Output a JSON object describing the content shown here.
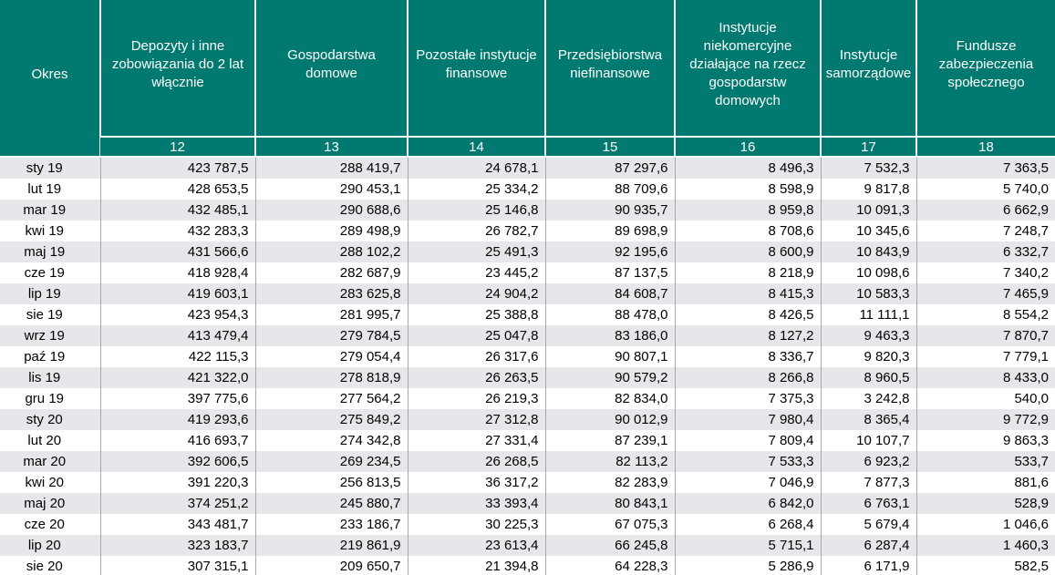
{
  "colors": {
    "header_bg": "#007A70",
    "header_text": "#FFFFFF",
    "row_stripe": "#E5E7EA",
    "row_white": "#FFFFFF",
    "grid_line": "#A6A9AC",
    "cell_text": "#000000",
    "header_separator": "#FFFFFF"
  },
  "chart_data": {
    "type": "table",
    "title": "",
    "columns": [
      "Okres",
      "Depozyty i inne\nzobowiązania do 2 lat\nwłącznie",
      "Gospodarstwa\ndomowe",
      "Pozostałe instytucje\nfinansowe",
      "Przedsiębiorstwa\nniefinansowe",
      "Instytucje\nniekomercyjne\ndziałające na rzecz\ngospodarstw\ndomowych",
      "Instytucje\nsamorządowe",
      "Fundusze\nzabezpieczenia\nspołecznego"
    ],
    "column_numbers": [
      "12",
      "13",
      "14",
      "15",
      "16",
      "17",
      "18"
    ],
    "rows": [
      [
        "sty 19",
        "423 787,5",
        "288 419,7",
        "24 678,1",
        "87 297,6",
        "8 496,3",
        "7 532,3",
        "7 363,5"
      ],
      [
        "lut 19",
        "428 653,5",
        "290 453,1",
        "25 334,2",
        "88 709,6",
        "8 598,9",
        "9 817,8",
        "5 740,0"
      ],
      [
        "mar 19",
        "432 485,1",
        "290 688,6",
        "25 146,8",
        "90 935,7",
        "8 959,8",
        "10 091,3",
        "6 662,9"
      ],
      [
        "kwi 19",
        "432 283,3",
        "289 498,9",
        "26 782,7",
        "89 698,9",
        "8 708,6",
        "10 345,6",
        "7 248,7"
      ],
      [
        "maj 19",
        "431 566,6",
        "288 102,2",
        "25 491,3",
        "92 195,6",
        "8 600,9",
        "10 843,9",
        "6 332,7"
      ],
      [
        "cze 19",
        "418 928,4",
        "282 687,9",
        "23 445,2",
        "87 137,5",
        "8 218,9",
        "10 098,6",
        "7 340,2"
      ],
      [
        "lip 19",
        "419 603,1",
        "283 625,8",
        "24 904,2",
        "84 608,7",
        "8 415,3",
        "10 583,3",
        "7 465,9"
      ],
      [
        "sie 19",
        "423 954,3",
        "281 995,7",
        "25 388,8",
        "88 478,0",
        "8 426,5",
        "11 111,1",
        "8 554,2"
      ],
      [
        "wrz 19",
        "413 479,4",
        "279 784,5",
        "25 047,8",
        "83 186,0",
        "8 127,2",
        "9 463,3",
        "7 870,7"
      ],
      [
        "paź 19",
        "422 115,3",
        "279 054,4",
        "26 317,6",
        "90 807,1",
        "8 336,7",
        "9 820,3",
        "7 779,1"
      ],
      [
        "lis 19",
        "421 322,0",
        "278 818,9",
        "26 263,5",
        "90 579,2",
        "8 266,8",
        "8 960,5",
        "8 433,0"
      ],
      [
        "gru 19",
        "397 775,6",
        "277 564,2",
        "26 219,3",
        "82 834,0",
        "7 375,3",
        "3 242,8",
        "540,0"
      ],
      [
        "sty 20",
        "419 293,6",
        "275 849,2",
        "27 312,8",
        "90 012,9",
        "7 980,4",
        "8 365,4",
        "9 772,9"
      ],
      [
        "lut 20",
        "416 693,7",
        "274 342,8",
        "27 331,4",
        "87 239,1",
        "7 809,4",
        "10 107,7",
        "9 863,3"
      ],
      [
        "mar 20",
        "392 606,5",
        "269 234,5",
        "26 268,5",
        "82 113,2",
        "7 533,3",
        "6 923,2",
        "533,7"
      ],
      [
        "kwi 20",
        "391 220,3",
        "256 813,5",
        "36 317,2",
        "82 283,9",
        "7 046,9",
        "7 877,3",
        "881,6"
      ],
      [
        "maj 20",
        "374 251,2",
        "245 880,7",
        "33 393,4",
        "80 843,1",
        "6 842,0",
        "6 763,1",
        "528,9"
      ],
      [
        "cze 20",
        "343 481,7",
        "233 186,7",
        "30 225,3",
        "67 075,3",
        "6 268,4",
        "5 679,4",
        "1 046,6"
      ],
      [
        "lip 20",
        "323 183,7",
        "219 861,9",
        "23 613,4",
        "66 245,8",
        "5 715,1",
        "6 287,4",
        "1 460,3"
      ],
      [
        "sie 20",
        "307 315,1",
        "209 650,7",
        "21 394,8",
        "64 228,3",
        "5 286,9",
        "6 171,9",
        "582,5"
      ]
    ]
  }
}
